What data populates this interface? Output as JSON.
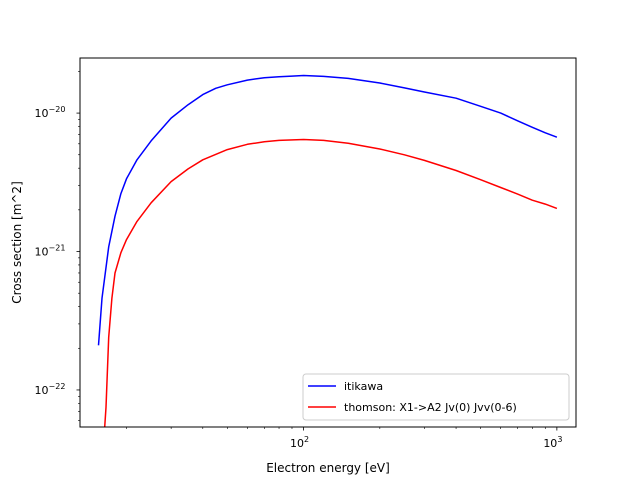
{
  "chart_data": {
    "type": "line",
    "title": "",
    "xlabel": "Electron energy [eV]",
    "ylabel": "Cross section [m^2]",
    "xscale": "log",
    "yscale": "log",
    "xlim": [
      13.1,
      1190
    ],
    "ylim": [
      5.4e-23,
      2.5e-20
    ],
    "x_ticks": [
      {
        "value": 100,
        "base": "10",
        "exp": "2"
      },
      {
        "value": 1000,
        "base": "10",
        "exp": "3"
      }
    ],
    "y_ticks": [
      {
        "value": 1e-22,
        "base": "10",
        "exp": "−22"
      },
      {
        "value": 1e-21,
        "base": "10",
        "exp": "−21"
      },
      {
        "value": 1e-20,
        "base": "10",
        "exp": "−20"
      }
    ],
    "grid": false,
    "legend_position": "lower-right",
    "series": [
      {
        "name": "itikawa",
        "color": "#0000ff",
        "x": [
          15.5,
          16,
          17,
          18,
          19,
          20,
          22,
          25,
          30,
          35,
          40,
          45,
          50,
          60,
          70,
          80,
          90,
          100,
          120,
          150,
          200,
          250,
          300,
          400,
          500,
          600,
          700,
          800,
          900,
          1000
        ],
        "y": [
          2.1e-22,
          4.6e-22,
          1.08e-21,
          1.8e-21,
          2.62e-21,
          3.35e-21,
          4.6e-21,
          6.3e-21,
          9.2e-21,
          1.15e-20,
          1.36e-20,
          1.51e-20,
          1.6e-20,
          1.73e-20,
          1.8e-20,
          1.83e-20,
          1.85e-20,
          1.87e-20,
          1.84e-20,
          1.78e-20,
          1.65e-20,
          1.52e-20,
          1.42e-20,
          1.28e-20,
          1.12e-20,
          1e-20,
          8.8e-21,
          7.9e-21,
          7.2e-21,
          6.7e-21
        ]
      },
      {
        "name": "thomson: X1->A2 Jv(0) Jvv(0-6)",
        "color": "#ff0000",
        "x": [
          16.4,
          16.6,
          17,
          17.5,
          18,
          19,
          20,
          22,
          25,
          30,
          35,
          40,
          50,
          60,
          70,
          80,
          100,
          120,
          150,
          200,
          250,
          300,
          400,
          500,
          600,
          700,
          800,
          900,
          1000
        ],
        "y": [
          5.4e-23,
          7.5e-23,
          2.4e-22,
          4.6e-22,
          7e-22,
          9.8e-22,
          1.22e-21,
          1.65e-21,
          2.25e-21,
          3.2e-21,
          3.95e-21,
          4.6e-21,
          5.45e-21,
          5.95e-21,
          6.2e-21,
          6.35e-21,
          6.45e-21,
          6.35e-21,
          6.05e-21,
          5.5e-21,
          5e-21,
          4.55e-21,
          3.85e-21,
          3.3e-21,
          2.9e-21,
          2.6e-21,
          2.35e-21,
          2.2e-21,
          2.05e-21
        ]
      }
    ]
  }
}
